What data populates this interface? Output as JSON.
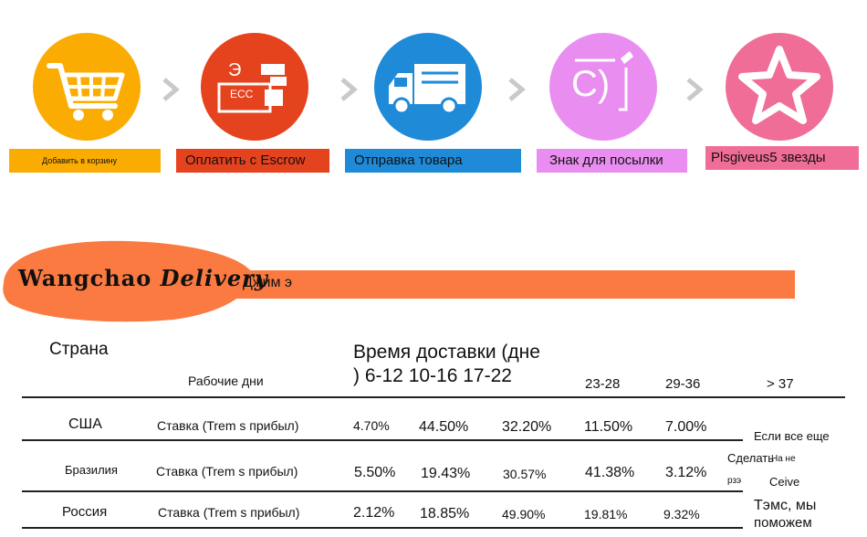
{
  "steps": [
    {
      "label": "Добавить в корзину",
      "icon": "shopping-cart-icon",
      "color": "#fbac03",
      "label_bg": "#fbac03"
    },
    {
      "label": "Оплатить с Escrow",
      "icon": "escrow-payment-icon",
      "color": "#e5421e",
      "label_bg": "#e5421e",
      "icon_text_top": "Э",
      "icon_text_mid": "ECC"
    },
    {
      "label": "Отправка товара",
      "icon": "delivery-truck-icon",
      "color": "#1e8ad8",
      "label_bg": "#1e8ad8"
    },
    {
      "label": "Знак для посылки",
      "icon": "sign-package-icon",
      "color": "#e98ef0",
      "label_bg": "#e98ef0",
      "icon_text": "С)"
    },
    {
      "label": "Plsgiveus5 звезды",
      "icon": "star-icon",
      "color": "#ef6d96",
      "label_bg": "#ef6d96"
    }
  ],
  "banner": {
    "brand": "Wangchao",
    "brand_script": "Delivery",
    "subtitle": "Джим э"
  },
  "table": {
    "country_header": "Страна",
    "time_header_line1": "Время доставки (дне",
    "time_header_line2": ") 6-12 10-16 17-22",
    "workdays_label": "Рабочие дни",
    "extra_cols": [
      "23-28",
      "29-36",
      "> 37"
    ],
    "rows": [
      {
        "country": "США",
        "rate": "Ставка (Trem s прибыл)",
        "values": [
          "4.70%",
          "44.50%",
          "32.20%",
          "11.50%",
          "7.00%"
        ]
      },
      {
        "country": "Бразилия",
        "rate": "Ставка (Trem s прибыл)",
        "values": [
          "5.50%",
          "19.43%",
          "30.57%",
          "41.38%",
          "3.12%"
        ]
      },
      {
        "country": "Россия",
        "rate": "Ставка (Trem s прибыл)",
        "values": [
          "2.12%",
          "18.85%",
          "49.90%",
          "19.81%",
          "9.32%"
        ]
      }
    ],
    "notes": {
      "n1": "Если все еще",
      "n2": "Сделать",
      "n3": "На не",
      "n4": "рзэ",
      "n5": "Ceive",
      "n6": "Тэмс, мы",
      "n7": "поможем"
    }
  }
}
